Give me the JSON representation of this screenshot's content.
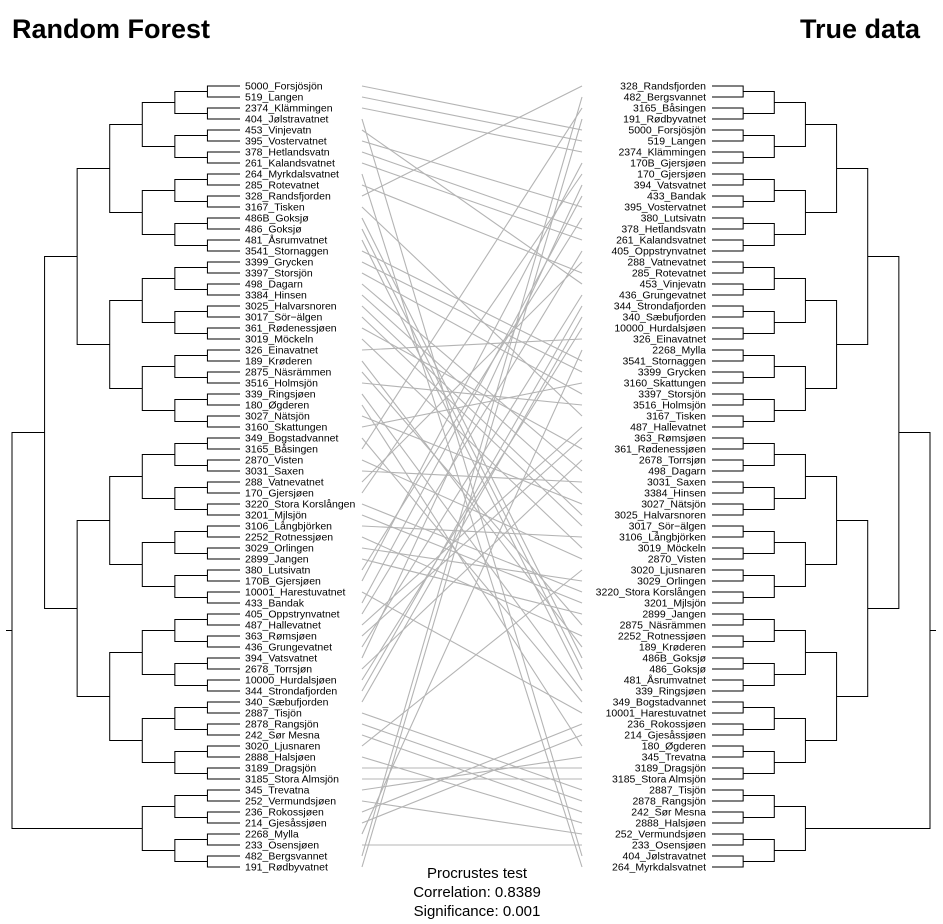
{
  "chart_data": {
    "type": "tanglegram",
    "left_title": "Random Forest",
    "right_title": "True data",
    "left_labels": [
      "5000_Forsjösjön",
      "519_Langen",
      "2374_Klämmingen",
      "404_Jølstravatnet",
      "453_Vinjevatn",
      "395_Vostervatnet",
      "378_Hetlandsvatn",
      "261_Kalandsvatnet",
      "264_Myrkdalsvatnet",
      "285_Rotevatnet",
      "328_Randsfjorden",
      "3167_Tisken",
      "486B_Goksjø",
      "486_Goksjø",
      "481_Åsrumvatnet",
      "3541_Stornaggen",
      "3399_Grycken",
      "3397_Storsjön",
      "498_Dagarn",
      "3384_Hinsen",
      "3025_Halvarsnoren",
      "3017_Sör−älgen",
      "361_Rødenessjøen",
      "3019_Möckeln",
      "326_Einavatnet",
      "189_Krøderen",
      "2875_Näsrämmen",
      "3516_Holmsjön",
      "339_Ringsjøen",
      "180_Øgderen",
      "3027_Nätsjön",
      "3160_Skattungen",
      "349_Bogstadvannet",
      "3165_Båsingen",
      "2870_Visten",
      "3031_Saxen",
      "288_Vatnevatnet",
      "170_Gjersjøen",
      "3220_Stora Korslången",
      "3201_Mjlsjön",
      "3106_Långbjörken",
      "2252_Rotnessjøen",
      "3029_Orlingen",
      "2899_Jangen",
      "380_Lutsivatn",
      "170B_Gjersjøen",
      "10001_Harestuvatnet",
      "433_Bandak",
      "405_Oppstrynvatnet",
      "487_Hallevatnet",
      "363_Rømsjøen",
      "436_Grungevatnet",
      "394_Vatsvatnet",
      "2678_Torrsjøn",
      "10000_Hurdalsjøen",
      "344_Strondafjorden",
      "340_Sæbufjorden",
      "2887_Tisjön",
      "2878_Rangsjön",
      "242_Sør Mesna",
      "3020_Ljusnaren",
      "2888_Halsjøen",
      "3189_Dragsjön",
      "3185_Stora Almsjön",
      "345_Trevatna",
      "252_Vermundsjøen",
      "236_Rokossjøen",
      "214_Gjesåssjøen",
      "2268_Mylla",
      "233_Osensjøen",
      "482_Bergsvannet",
      "191_Rødbyvatnet"
    ],
    "right_labels": [
      "328_Randsfjorden",
      "482_Bergsvannet",
      "3165_Båsingen",
      "191_Rødbyvatnet",
      "5000_Forsjösjön",
      "519_Langen",
      "2374_Klämmingen",
      "170B_Gjersjøen",
      "170_Gjersjøen",
      "394_Vatsvatnet",
      "433_Bandak",
      "395_Vostervatnet",
      "380_Lutsivatn",
      "378_Hetlandsvatn",
      "261_Kalandsvatnet",
      "405_Oppstrynvatnet",
      "288_Vatnevatnet",
      "285_Rotevatnet",
      "453_Vinjevatn",
      "436_Grungevatnet",
      "344_Strondafjorden",
      "340_Sæbufjorden",
      "10000_Hurdalsjøen",
      "326_Einavatnet",
      "2268_Mylla",
      "3541_Stornaggen",
      "3399_Grycken",
      "3160_Skattungen",
      "3397_Storsjön",
      "3516_Holmsjön",
      "3167_Tisken",
      "487_Hallevatnet",
      "363_Rømsjøen",
      "361_Rødenessjøen",
      "2678_Torrsjøn",
      "498_Dagarn",
      "3031_Saxen",
      "3384_Hinsen",
      "3027_Nätsjön",
      "3025_Halvarsnoren",
      "3017_Sör−älgen",
      "3106_Långbjörken",
      "3019_Möckeln",
      "2870_Visten",
      "3020_Ljusnaren",
      "3029_Orlingen",
      "3220_Stora Korslången",
      "3201_Mjlsjön",
      "2899_Jangen",
      "2875_Näsrämmen",
      "2252_Rotnessjøen",
      "189_Krøderen",
      "486B_Goksjø",
      "486_Goksjø",
      "481_Åsrumvatnet",
      "339_Ringsjøen",
      "349_Bogstadvannet",
      "10001_Harestuvatnet",
      "236_Rokossjøen",
      "214_Gjesåssjøen",
      "180_Øgderen",
      "345_Trevatna",
      "3189_Dragsjön",
      "3185_Stora Almsjön",
      "2887_Tisjön",
      "2878_Rangsjön",
      "242_Sør Mesna",
      "2888_Halsjøen",
      "252_Vermundsjøen",
      "233_Osensjøen",
      "404_Jølstravatnet",
      "264_Myrkdalsvatnet"
    ],
    "legend": "none"
  },
  "annotation": {
    "line1": "Procrustes test",
    "line2": "Correlation: 0.8389",
    "line3": "Significance: 0.001"
  }
}
